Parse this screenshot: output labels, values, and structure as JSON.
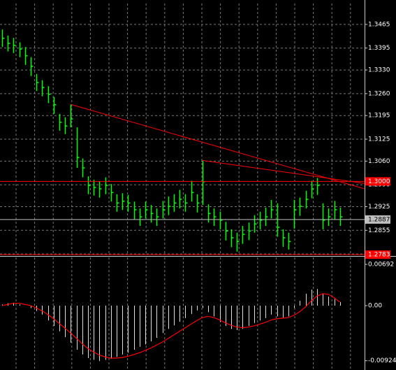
{
  "chart_data": [
    {
      "type": "ohlc",
      "color": "#00ff00",
      "grid": true,
      "xlim": [
        0,
        63.3
      ],
      "ylim": [
        1.2781,
        1.3527
      ],
      "yticks": [
        1.3465,
        1.3395,
        {
          "value": 1.333,
          "label": "1.3330"
        },
        {
          "value": 1.326,
          "label": "1.3260"
        },
        1.3195,
        1.3125,
        {
          "value": 1.306,
          "label": "1.3060"
        },
        {
          "value": 1.299,
          "label": "1.2990"
        },
        1.2925,
        1.2855,
        1.2785
      ],
      "values": [
        1.3424,
        1.3409,
        1.3403,
        1.3392,
        1.3372,
        1.3341,
        1.3293,
        1.3278,
        1.3258,
        1.3227,
        1.3175,
        1.3164,
        1.3185,
        1.3071,
        1.304,
        1.2988,
        1.2982,
        1.2978,
        1.2988,
        1.2967,
        1.2936,
        1.2941,
        1.2936,
        1.2916,
        1.2895,
        1.2916,
        1.2905,
        1.2895,
        1.2916,
        1.2926,
        1.2936,
        1.2947,
        1.2936,
        1.2967,
        1.2936,
        1.2999,
        1.2905,
        1.2895,
        1.2885,
        1.2853,
        1.2833,
        1.2822,
        1.2843,
        1.2853,
        1.2874,
        1.2885,
        1.2895,
        1.2916,
        1.2864,
        1.2833,
        1.2822,
        1.2916,
        1.2926,
        1.2947,
        1.2978,
        1.2988,
        1.2885,
        1.2895,
        1.2916,
        1.2895
      ],
      "high": [
        1.345,
        1.3432,
        1.3425,
        1.3412,
        1.3398,
        1.3368,
        1.3318,
        1.33,
        1.3282,
        1.325,
        1.32,
        1.319,
        1.3228,
        1.316,
        1.3068,
        1.3015,
        1.3005,
        1.3,
        1.3012,
        1.2992,
        1.2962,
        1.2965,
        1.296,
        1.294,
        1.292,
        1.294,
        1.293,
        1.292,
        1.2942,
        1.2955,
        1.2962,
        1.2975,
        1.2962,
        1.3002,
        1.2962,
        1.3062,
        1.2932,
        1.292,
        1.291,
        1.288,
        1.2858,
        1.2848,
        1.2868,
        1.2878,
        1.29,
        1.291,
        1.2922,
        1.2945,
        1.2935,
        1.2858,
        1.2848,
        1.2945,
        1.2952,
        1.2972,
        1.3002,
        1.301,
        1.2935,
        1.292,
        1.2942,
        1.2922
      ],
      "low": [
        1.3398,
        1.3385,
        1.338,
        1.3368,
        1.3345,
        1.3312,
        1.3268,
        1.3252,
        1.3232,
        1.32,
        1.315,
        1.314,
        1.316,
        1.304,
        1.3012,
        1.2962,
        1.2958,
        1.2952,
        1.2962,
        1.294,
        1.291,
        1.2915,
        1.291,
        1.2888,
        1.2868,
        1.289,
        1.2878,
        1.2868,
        1.289,
        1.29,
        1.291,
        1.292,
        1.291,
        1.294,
        1.2908,
        1.293,
        1.2878,
        1.2868,
        1.2858,
        1.2825,
        1.2805,
        1.2792,
        1.2815,
        1.2826,
        1.2848,
        1.2858,
        1.2868,
        1.289,
        1.2836,
        1.2806,
        1.2798,
        1.286,
        1.2898,
        1.292,
        1.295,
        1.296,
        1.2858,
        1.2868,
        1.2888,
        1.2868
      ],
      "levels": [
        {
          "value": 1.3,
          "label": "1.3000",
          "color": "#ff0000"
        },
        {
          "value": 1.2887,
          "label": "1.2887",
          "color": "#c0c0c0"
        },
        {
          "value": 1.2783,
          "label": "1.2783",
          "color": "#ff0000"
        }
      ],
      "trendlines": [
        {
          "x": [
            12,
            63.3
          ],
          "y": [
            1.3228,
            1.2978
          ],
          "color": "#ff0000"
        },
        {
          "x": [
            35,
            63.3
          ],
          "y": [
            1.3062,
            1.2994
          ],
          "color": "#ff0000"
        }
      ]
    },
    {
      "type": "macd",
      "grid": false,
      "xlim": [
        0,
        63.3
      ],
      "ylim": [
        -0.01056,
        0.00809
      ],
      "yticks": [
        0.00692,
        {
          "value": 0,
          "label": "0.00"
        },
        -0.00924
      ],
      "series": [
        {
          "color": "#e0e0e0",
          "values": [
            0.0002,
            0.0004,
            0.0005,
            0.0002,
            0.0,
            -0.0004,
            -0.0009,
            -0.0015,
            -0.0025,
            -0.0034,
            -0.0043,
            -0.0053,
            -0.0062,
            -0.0074,
            -0.0082,
            -0.0088,
            -0.0091,
            -0.0093,
            -0.0091,
            -0.0089,
            -0.0086,
            -0.0082,
            -0.0079,
            -0.0074,
            -0.0069,
            -0.0065,
            -0.006,
            -0.0054,
            -0.0046,
            -0.0039,
            -0.0033,
            -0.0027,
            -0.0021,
            -0.0014,
            -0.0008,
            -0.0004,
            -0.0011,
            -0.0018,
            -0.0027,
            -0.0034,
            -0.0039,
            -0.0041,
            -0.0039,
            -0.0034,
            -0.0029,
            -0.0025,
            -0.0021,
            -0.0015,
            -0.0018,
            -0.002,
            -0.0018,
            -0.0004,
            0.0008,
            0.002,
            0.0027,
            0.0028,
            0.002,
            0.0015,
            0.0011,
            0.0006
          ]
        },
        {
          "color": "#ff0000",
          "values": [
            0.0,
            0.0002,
            0.0004,
            0.0004,
            0.0002,
            0.0,
            -0.0004,
            -0.0009,
            -0.0015,
            -0.0022,
            -0.003,
            -0.0038,
            -0.0046,
            -0.0055,
            -0.0064,
            -0.0072,
            -0.0078,
            -0.0083,
            -0.0086,
            -0.0088,
            -0.0088,
            -0.0087,
            -0.0085,
            -0.0082,
            -0.0079,
            -0.0075,
            -0.0071,
            -0.0066,
            -0.0061,
            -0.0055,
            -0.0049,
            -0.0043,
            -0.0037,
            -0.0031,
            -0.0025,
            -0.002,
            -0.0018,
            -0.002,
            -0.0024,
            -0.0029,
            -0.0033,
            -0.0036,
            -0.0037,
            -0.0036,
            -0.0034,
            -0.0031,
            -0.0028,
            -0.0024,
            -0.0022,
            -0.0021,
            -0.002,
            -0.0016,
            -0.001,
            -0.0002,
            0.0008,
            0.0016,
            0.002,
            0.0019,
            0.0013,
            0.0006
          ]
        }
      ]
    }
  ]
}
